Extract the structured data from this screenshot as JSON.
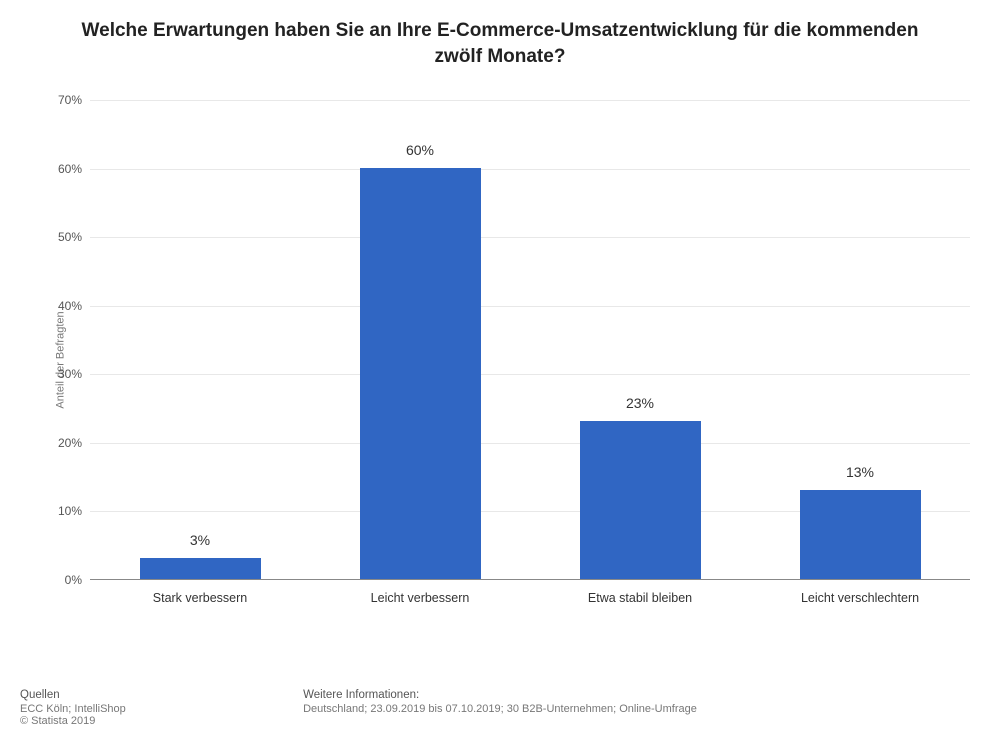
{
  "chart": {
    "type": "bar",
    "title": "Welche Erwartungen haben Sie an Ihre E-Commerce-Umsatzentwicklung für die kommenden zwölf Monate?",
    "ylabel": "Anteil der Befragten",
    "categories": [
      "Stark verbessern",
      "Leicht verbessern",
      "Etwa stabil bleiben",
      "Leicht verschlechtern"
    ],
    "values": [
      3,
      60,
      23,
      13
    ],
    "value_labels": [
      "3%",
      "60%",
      "23%",
      "13%"
    ],
    "bar_color": "#3066c3",
    "ylim_max": 70,
    "ytick_step": 10,
    "ytick_labels": [
      "0%",
      "10%",
      "20%",
      "30%",
      "40%",
      "50%",
      "60%",
      "70%"
    ],
    "bar_width_ratio": 0.55,
    "grid_color": "#e8e8e8",
    "background_color": "#ffffff",
    "title_fontsize": 19,
    "label_fontsize": 12
  },
  "footer": {
    "sources_heading": "Quellen",
    "sources_line": "ECC Köln; IntelliShop",
    "copyright": "© Statista 2019",
    "info_heading": "Weitere Informationen:",
    "info_line": "Deutschland; 23.09.2019 bis 07.10.2019; 30 B2B-Unternehmen; Online-Umfrage"
  }
}
